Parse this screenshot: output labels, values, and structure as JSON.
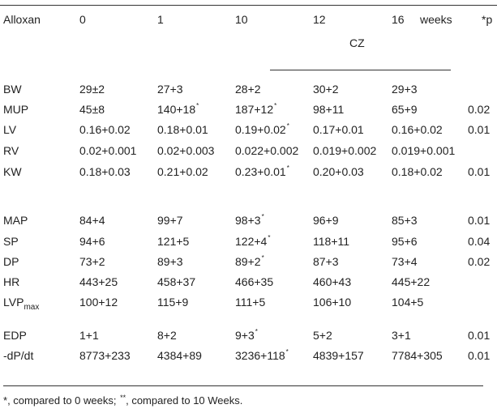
{
  "header": {
    "row_label": "Alloxan",
    "weeks": [
      "0",
      "1",
      "10",
      "12",
      "16"
    ],
    "weeks_unit": "weeks",
    "p_col": "*p",
    "group": "CZ"
  },
  "rows": [
    {
      "label": "BW",
      "sub": "",
      "values": [
        {
          "m": "29",
          "s": "±",
          "e": "2",
          "mark": ""
        },
        {
          "m": "27",
          "s": "+",
          "e": "3",
          "mark": ""
        },
        {
          "m": "28",
          "s": "+",
          "e": "2",
          "mark": ""
        },
        {
          "m": "30",
          "s": "+",
          "e": "2",
          "mark": ""
        },
        {
          "m": "29",
          "s": "+",
          "e": "3",
          "mark": ""
        }
      ],
      "p": ""
    },
    {
      "label": "MUP",
      "sub": "",
      "values": [
        {
          "m": "45",
          "s": "±",
          "e": "8",
          "mark": ""
        },
        {
          "m": "140",
          "s": "+",
          "e": "18",
          "mark": "*"
        },
        {
          "m": "187",
          "s": "+",
          "e": "12",
          "mark": "*"
        },
        {
          "m": "98",
          "s": "+",
          "e": "11",
          "mark": ""
        },
        {
          "m": "65",
          "s": "+",
          "e": "9",
          "mark": ""
        }
      ],
      "p": "0.02"
    },
    {
      "label": "LV",
      "sub": "",
      "values": [
        {
          "m": "0.16",
          "s": "+",
          "e": "0.02",
          "mark": ""
        },
        {
          "m": "0.18",
          "s": "+",
          "e": "0.01",
          "mark": ""
        },
        {
          "m": "0.19",
          "s": "+",
          "e": "0.02",
          "mark": "*"
        },
        {
          "m": "0.17",
          "s": "+",
          "e": "0.01",
          "mark": ""
        },
        {
          "m": "0.16",
          "s": "+",
          "e": "0.02",
          "mark": ""
        }
      ],
      "p": "0.01"
    },
    {
      "label": "RV",
      "sub": "",
      "values": [
        {
          "m": "0.02",
          "s": "+",
          "e": "0.001",
          "mark": ""
        },
        {
          "m": "0.02",
          "s": "+",
          "e": "0.003",
          "mark": ""
        },
        {
          "m": "0.022",
          "s": "+",
          "e": "0.002",
          "mark": ""
        },
        {
          "m": "0.019",
          "s": "+",
          "e": "0.002",
          "mark": ""
        },
        {
          "m": "0.019",
          "s": "+",
          "e": "0.001",
          "mark": ""
        }
      ],
      "p": ""
    },
    {
      "label": "KW",
      "sub": "",
      "values": [
        {
          "m": "0.18",
          "s": "+",
          "e": "0.03",
          "mark": ""
        },
        {
          "m": "0.21",
          "s": "+",
          "e": "0.02",
          "mark": ""
        },
        {
          "m": "0.23",
          "s": "+",
          "e": "0.01",
          "mark": "*"
        },
        {
          "m": "0.20",
          "s": "+",
          "e": "0.03",
          "mark": ""
        },
        {
          "m": "0.18",
          "s": "+",
          "e": "0.02",
          "mark": ""
        }
      ],
      "p": "0.01"
    },
    {
      "label": "MAP",
      "sub": "",
      "values": [
        {
          "m": "84",
          "s": "+",
          "e": "4",
          "mark": ""
        },
        {
          "m": "99",
          "s": "+",
          "e": "7",
          "mark": ""
        },
        {
          "m": "98",
          "s": "+",
          "e": "3",
          "mark": "*"
        },
        {
          "m": "96",
          "s": "+",
          "e": "9",
          "mark": ""
        },
        {
          "m": "85",
          "s": "+",
          "e": "3",
          "mark": ""
        }
      ],
      "p": "0.01"
    },
    {
      "label": "SP",
      "sub": "",
      "values": [
        {
          "m": "94",
          "s": "+",
          "e": "6",
          "mark": ""
        },
        {
          "m": "121",
          "s": "+",
          "e": "5",
          "mark": ""
        },
        {
          "m": "122",
          "s": "+",
          "e": "4",
          "mark": "*"
        },
        {
          "m": "118",
          "s": "+",
          "e": "11",
          "mark": ""
        },
        {
          "m": "95",
          "s": "+",
          "e": "6",
          "mark": ""
        }
      ],
      "p": "0.04"
    },
    {
      "label": "DP",
      "sub": "",
      "values": [
        {
          "m": "73",
          "s": "+",
          "e": "2",
          "mark": ""
        },
        {
          "m": "89",
          "s": "+",
          "e": "3",
          "mark": ""
        },
        {
          "m": "89",
          "s": "+",
          "e": "2",
          "mark": "*"
        },
        {
          "m": "87",
          "s": "+",
          "e": "3",
          "mark": ""
        },
        {
          "m": "73",
          "s": "+",
          "e": "4",
          "mark": ""
        }
      ],
      "p": "0.02"
    },
    {
      "label": "HR",
      "sub": "",
      "values": [
        {
          "m": "443",
          "s": "+",
          "e": "25",
          "mark": ""
        },
        {
          "m": "458",
          "s": "+",
          "e": "37",
          "mark": ""
        },
        {
          "m": "466",
          "s": "+",
          "e": "35",
          "mark": ""
        },
        {
          "m": "460",
          "s": "+",
          "e": "43",
          "mark": ""
        },
        {
          "m": "445",
          "s": "+",
          "e": "22",
          "mark": ""
        }
      ],
      "p": ""
    },
    {
      "label": "LVP",
      "sub": "max",
      "values": [
        {
          "m": "100",
          "s": "+",
          "e": "12",
          "mark": ""
        },
        {
          "m": "115",
          "s": "+",
          "e": "9",
          "mark": ""
        },
        {
          "m": "111",
          "s": "+",
          "e": "5",
          "mark": ""
        },
        {
          "m": "106",
          "s": "+",
          "e": "10",
          "mark": ""
        },
        {
          "m": "104",
          "s": "+",
          "e": "5",
          "mark": ""
        }
      ],
      "p": ""
    },
    {
      "label": "EDP",
      "sub": "",
      "values": [
        {
          "m": "1",
          "s": "+",
          "e": "1",
          "mark": ""
        },
        {
          "m": "8",
          "s": "+",
          "e": "2",
          "mark": ""
        },
        {
          "m": "9",
          "s": "+",
          "e": "3",
          "mark": "*"
        },
        {
          "m": "5",
          "s": "+",
          "e": "2",
          "mark": ""
        },
        {
          "m": "3",
          "s": "+",
          "e": "1",
          "mark": ""
        }
      ],
      "p": "0.01"
    },
    {
      "label": "-dP/dt",
      "sub": "",
      "values": [
        {
          "m": "8773",
          "s": "+",
          "e": "233",
          "mark": ""
        },
        {
          "m": "4384",
          "s": "+",
          "e": "89",
          "mark": ""
        },
        {
          "m": "3236",
          "s": "+",
          "e": "118",
          "mark": "*"
        },
        {
          "m": "4839",
          "s": "+",
          "e": "157",
          "mark": ""
        },
        {
          "m": "7784",
          "s": "+",
          "e": "305",
          "mark": ""
        }
      ],
      "p": "0.01"
    }
  ],
  "footnote": {
    "mark1": "*",
    "text1": ", compared to 0 weeks; ",
    "mark2": "**",
    "text2": ", compared to 10 Weeks."
  }
}
